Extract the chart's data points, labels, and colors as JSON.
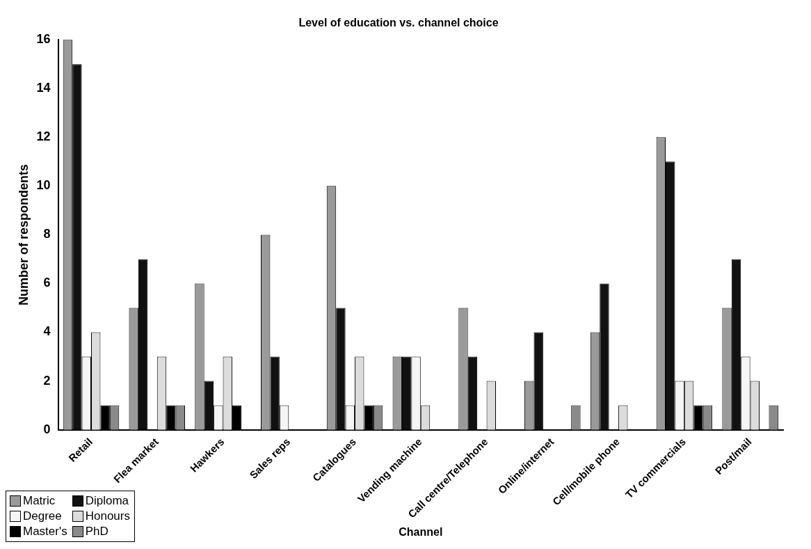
{
  "chart_data": {
    "type": "bar",
    "title": "Level of education vs. channel choice",
    "xlabel": "Channel",
    "ylabel": "Number of respondents",
    "categories": [
      "Retail",
      "Flea market",
      "Hawkers",
      "Sales reps",
      "Catalogues",
      "Vending machine",
      "Call centre/Telephone",
      "Online/internet",
      "Cell/mobile phone",
      "TV commercials",
      "Post/mail"
    ],
    "series": [
      {
        "name": "Matric",
        "color": "#9a9a9a",
        "values": [
          16,
          5,
          6,
          8,
          10,
          3,
          5,
          2,
          4,
          12,
          5
        ]
      },
      {
        "name": "Diploma",
        "color": "#111111",
        "values": [
          15,
          7,
          2,
          3,
          5,
          3,
          3,
          4,
          6,
          11,
          7
        ]
      },
      {
        "name": "Degree",
        "color": "#f5f5f5",
        "values": [
          3,
          0,
          1,
          1,
          1,
          3,
          0,
          0,
          0,
          2,
          3
        ]
      },
      {
        "name": "Honours",
        "color": "#dcdcdc",
        "values": [
          4,
          3,
          3,
          0,
          3,
          1,
          2,
          0,
          1,
          2,
          2
        ]
      },
      {
        "name": "Master's",
        "color": "#000000",
        "values": [
          1,
          1,
          1,
          0,
          1,
          0,
          0,
          0,
          0,
          1,
          0
        ]
      },
      {
        "name": "PhD",
        "color": "#8a8a8a",
        "values": [
          1,
          1,
          0,
          0,
          1,
          0,
          0,
          1,
          0,
          1,
          1
        ]
      }
    ],
    "ylim": [
      0,
      16
    ],
    "yticks": [
      0,
      2,
      4,
      6,
      8,
      10,
      12,
      14,
      16
    ],
    "grid": false,
    "legend": "bottom left"
  }
}
